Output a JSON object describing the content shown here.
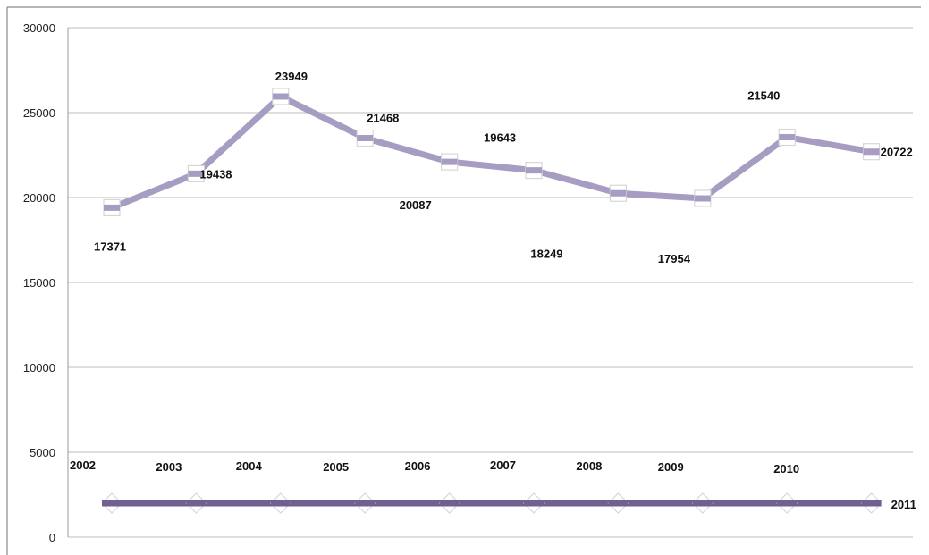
{
  "chart_data": {
    "type": "line",
    "title": "",
    "xlabel": "",
    "ylabel": "",
    "ylim": [
      0,
      30000
    ],
    "yticks": [
      0,
      5000,
      10000,
      15000,
      20000,
      25000,
      30000
    ],
    "grid": true,
    "legend": "none",
    "series": [
      {
        "values": [
          19400,
          21400,
          25950,
          23500,
          22100,
          21600,
          20250,
          19950,
          23550,
          22700
        ],
        "color": "#a79cc1",
        "marker": "square",
        "data_labels": [
          "17371",
          "19438",
          "23949",
          "21468",
          "20087",
          "19643",
          "18249",
          "17954",
          "21540",
          "20722"
        ]
      },
      {
        "values": [
          2000,
          2000,
          2000,
          2000,
          2000,
          2000,
          2000,
          2000,
          2000,
          2000
        ],
        "color": "#6f5f93",
        "marker": "diamond",
        "data_labels": [
          "2002",
          "2003",
          "2004",
          "2005",
          "2006",
          "2007",
          "2008",
          "2009",
          "2010",
          "2011"
        ]
      }
    ]
  }
}
